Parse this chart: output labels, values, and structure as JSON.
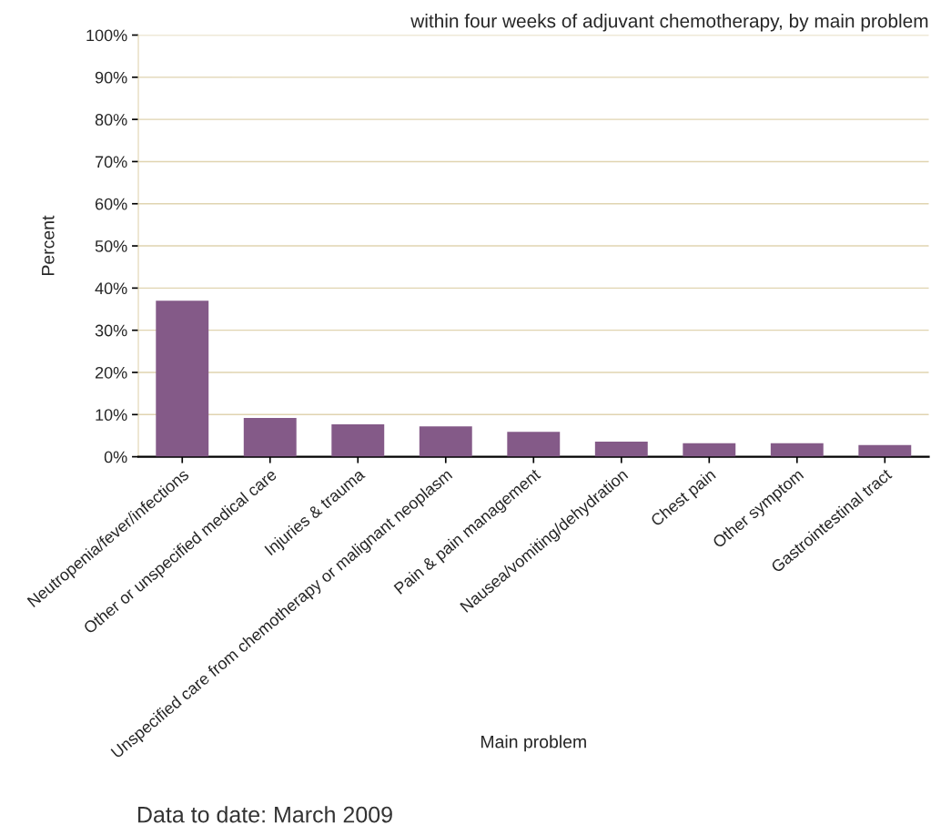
{
  "chart_data": {
    "type": "bar",
    "title": "within four weeks of adjuvant chemotherapy, by main problem",
    "xlabel": "Main problem",
    "ylabel": "Percent",
    "categories": [
      "Neutropenia/fever/infections",
      "Other or unspecified medical care",
      "Injuries & trauma",
      "Unspecified care from chemotherapy or malignant neoplasm",
      "Pain & pain management",
      "Nausea/vomiting/dehydration",
      "Chest pain",
      "Other symptom",
      "Gastrointestinal tract"
    ],
    "values": [
      37.0,
      9.2,
      7.7,
      7.2,
      5.9,
      3.6,
      3.2,
      3.2,
      2.8
    ],
    "color": "#845a88",
    "ylim": [
      0,
      100
    ],
    "yticks": [
      {
        "value": 0,
        "label": "0%"
      },
      {
        "value": 10,
        "label": "10%"
      },
      {
        "value": 20,
        "label": "20%"
      },
      {
        "value": 30,
        "label": "30%"
      },
      {
        "value": 40,
        "label": "40%"
      },
      {
        "value": 50,
        "label": "50%"
      },
      {
        "value": 60,
        "label": "60%"
      },
      {
        "value": 70,
        "label": "70%"
      },
      {
        "value": 80,
        "label": "80%"
      },
      {
        "value": 90,
        "label": "90%"
      },
      {
        "value": 100,
        "label": "100%"
      }
    ],
    "grid": "y",
    "annotations": [
      "Data to date: March 2009"
    ]
  }
}
